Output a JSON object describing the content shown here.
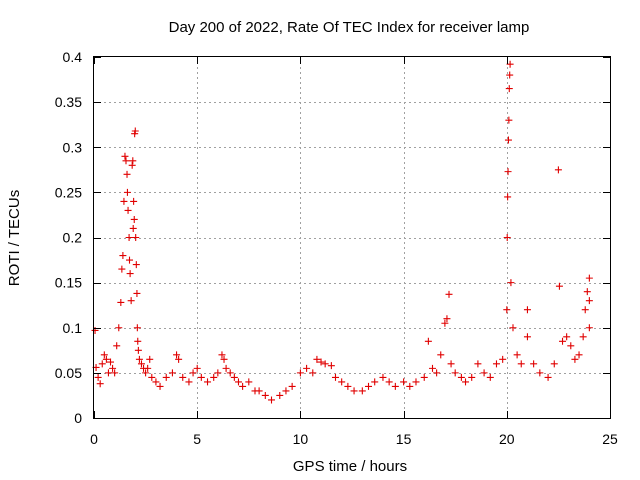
{
  "chart_data": {
    "type": "scatter",
    "title": "Day 200 of 2022, Rate Of TEC Index for receiver lamp",
    "xlabel": "GPS time / hours",
    "ylabel": "ROTI / TECUs",
    "xlim": [
      0,
      25
    ],
    "ylim": [
      0,
      0.4
    ],
    "x_ticks": [
      0,
      5,
      10,
      15,
      20,
      25
    ],
    "y_ticks": [
      0,
      0.05,
      0.1,
      0.15,
      0.2,
      0.25,
      0.3,
      0.35,
      0.4
    ],
    "x_tick_labels": [
      "0",
      "5",
      "10",
      "15",
      "20",
      "25"
    ],
    "y_tick_labels": [
      "0",
      "0.05",
      "0.1",
      "0.15",
      "0.2",
      "0.25",
      "0.3",
      "0.35",
      "0.4"
    ],
    "grid": true,
    "marker": "+",
    "marker_color": "#e00000",
    "series": [
      {
        "points": [
          [
            0.05,
            0.097
          ],
          [
            0.1,
            0.056
          ],
          [
            0.2,
            0.045
          ],
          [
            0.3,
            0.038
          ],
          [
            0.4,
            0.06
          ],
          [
            0.5,
            0.07
          ],
          [
            0.6,
            0.065
          ],
          [
            0.7,
            0.05
          ],
          [
            0.8,
            0.062
          ],
          [
            0.9,
            0.055
          ],
          [
            1.0,
            0.05
          ],
          [
            1.1,
            0.08
          ],
          [
            1.2,
            0.1
          ],
          [
            1.3,
            0.128
          ],
          [
            1.35,
            0.165
          ],
          [
            1.4,
            0.18
          ],
          [
            1.45,
            0.24
          ],
          [
            1.5,
            0.29
          ],
          [
            1.55,
            0.285
          ],
          [
            1.6,
            0.27
          ],
          [
            1.62,
            0.25
          ],
          [
            1.65,
            0.23
          ],
          [
            1.7,
            0.2
          ],
          [
            1.72,
            0.175
          ],
          [
            1.75,
            0.16
          ],
          [
            1.8,
            0.13
          ],
          [
            1.85,
            0.28
          ],
          [
            1.88,
            0.285
          ],
          [
            1.9,
            0.21
          ],
          [
            1.92,
            0.24
          ],
          [
            1.95,
            0.22
          ],
          [
            1.97,
            0.315
          ],
          [
            2.0,
            0.318
          ],
          [
            2.02,
            0.2
          ],
          [
            2.05,
            0.17
          ],
          [
            2.08,
            0.138
          ],
          [
            2.1,
            0.1
          ],
          [
            2.12,
            0.085
          ],
          [
            2.15,
            0.075
          ],
          [
            2.2,
            0.065
          ],
          [
            2.3,
            0.06
          ],
          [
            2.4,
            0.055
          ],
          [
            2.5,
            0.05
          ],
          [
            2.6,
            0.055
          ],
          [
            2.7,
            0.065
          ],
          [
            2.8,
            0.045
          ],
          [
            3.0,
            0.04
          ],
          [
            3.2,
            0.035
          ],
          [
            3.5,
            0.045
          ],
          [
            3.8,
            0.05
          ],
          [
            4.0,
            0.07
          ],
          [
            4.1,
            0.065
          ],
          [
            4.3,
            0.045
          ],
          [
            4.6,
            0.04
          ],
          [
            4.8,
            0.05
          ],
          [
            5.0,
            0.055
          ],
          [
            5.2,
            0.045
          ],
          [
            5.5,
            0.04
          ],
          [
            5.8,
            0.045
          ],
          [
            6.0,
            0.05
          ],
          [
            6.2,
            0.07
          ],
          [
            6.3,
            0.065
          ],
          [
            6.4,
            0.055
          ],
          [
            6.6,
            0.05
          ],
          [
            6.8,
            0.045
          ],
          [
            7.0,
            0.04
          ],
          [
            7.2,
            0.035
          ],
          [
            7.5,
            0.04
          ],
          [
            7.8,
            0.03
          ],
          [
            8.0,
            0.03
          ],
          [
            8.3,
            0.025
          ],
          [
            8.6,
            0.02
          ],
          [
            9.0,
            0.025
          ],
          [
            9.3,
            0.03
          ],
          [
            9.6,
            0.035
          ],
          [
            10.0,
            0.05
          ],
          [
            10.3,
            0.055
          ],
          [
            10.6,
            0.05
          ],
          [
            10.8,
            0.065
          ],
          [
            11.0,
            0.062
          ],
          [
            11.2,
            0.06
          ],
          [
            11.5,
            0.058
          ],
          [
            11.7,
            0.045
          ],
          [
            12.0,
            0.04
          ],
          [
            12.3,
            0.035
          ],
          [
            12.6,
            0.03
          ],
          [
            13.0,
            0.03
          ],
          [
            13.3,
            0.035
          ],
          [
            13.6,
            0.04
          ],
          [
            14.0,
            0.045
          ],
          [
            14.3,
            0.04
          ],
          [
            14.6,
            0.035
          ],
          [
            15.0,
            0.04
          ],
          [
            15.3,
            0.035
          ],
          [
            15.6,
            0.04
          ],
          [
            16.0,
            0.045
          ],
          [
            16.2,
            0.085
          ],
          [
            16.4,
            0.055
          ],
          [
            16.6,
            0.05
          ],
          [
            16.8,
            0.07
          ],
          [
            17.0,
            0.105
          ],
          [
            17.1,
            0.11
          ],
          [
            17.2,
            0.137
          ],
          [
            17.3,
            0.06
          ],
          [
            17.5,
            0.05
          ],
          [
            17.8,
            0.045
          ],
          [
            18.0,
            0.04
          ],
          [
            18.3,
            0.045
          ],
          [
            18.6,
            0.06
          ],
          [
            18.9,
            0.05
          ],
          [
            19.2,
            0.045
          ],
          [
            19.5,
            0.06
          ],
          [
            19.8,
            0.065
          ],
          [
            20.0,
            0.12
          ],
          [
            20.02,
            0.2
          ],
          [
            20.04,
            0.245
          ],
          [
            20.06,
            0.273
          ],
          [
            20.08,
            0.308
          ],
          [
            20.1,
            0.33
          ],
          [
            20.12,
            0.365
          ],
          [
            20.14,
            0.38
          ],
          [
            20.16,
            0.392
          ],
          [
            20.2,
            0.15
          ],
          [
            20.3,
            0.1
          ],
          [
            20.5,
            0.07
          ],
          [
            20.7,
            0.06
          ],
          [
            21.0,
            0.12
          ],
          [
            21.0,
            0.09
          ],
          [
            21.3,
            0.06
          ],
          [
            21.6,
            0.05
          ],
          [
            22.0,
            0.045
          ],
          [
            22.3,
            0.06
          ],
          [
            22.5,
            0.275
          ],
          [
            22.55,
            0.146
          ],
          [
            22.7,
            0.085
          ],
          [
            22.9,
            0.09
          ],
          [
            23.1,
            0.08
          ],
          [
            23.3,
            0.065
          ],
          [
            23.5,
            0.07
          ],
          [
            23.7,
            0.09
          ],
          [
            23.8,
            0.12
          ],
          [
            23.9,
            0.14
          ],
          [
            24.0,
            0.155
          ],
          [
            24.0,
            0.13
          ],
          [
            24.0,
            0.1
          ]
        ]
      }
    ]
  }
}
